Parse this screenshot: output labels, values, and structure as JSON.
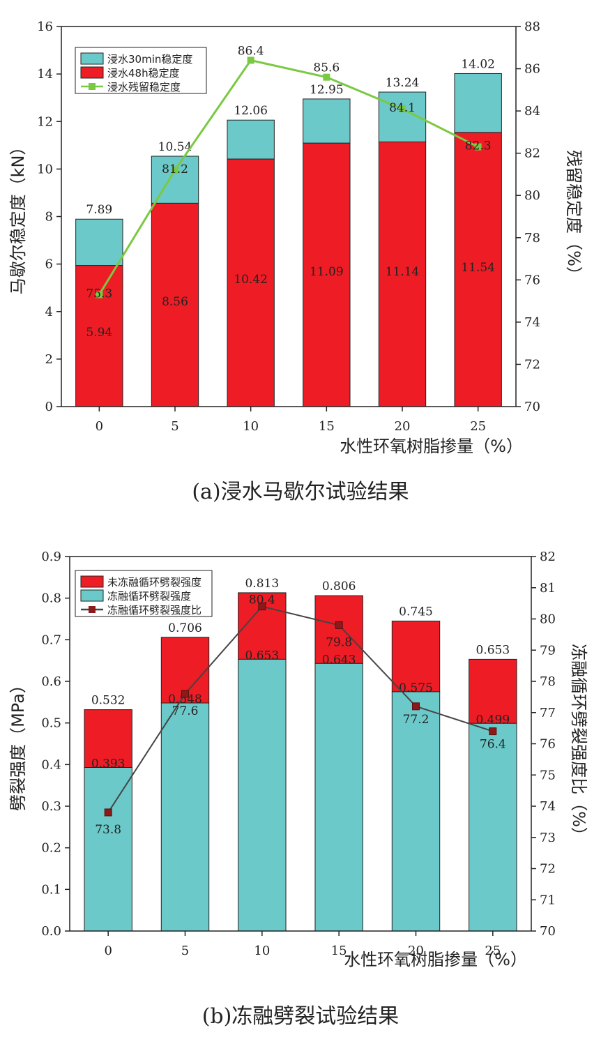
{
  "chart_data": [
    {
      "id": "a",
      "type": "bar",
      "stacked": true,
      "caption": "(a)浸水马歇尔试验结果",
      "categories": [
        "0",
        "5",
        "10",
        "15",
        "20",
        "25"
      ],
      "xlabel": "水性环氧树脂掺量（%）",
      "ylabel": "马歇尔稳定度（kN）",
      "y2label": "残留稳定度（%）",
      "ylim": [
        0,
        16
      ],
      "yticks": [
        0,
        2,
        4,
        6,
        8,
        10,
        12,
        14,
        16
      ],
      "y2lim": [
        70,
        88
      ],
      "y2ticks": [
        70,
        72,
        74,
        76,
        78,
        80,
        82,
        84,
        86,
        88
      ],
      "legend_position": "top-left",
      "series": [
        {
          "name": "浸水30min稳定度",
          "kind": "bar-total",
          "color": "#6cc9c9",
          "values": [
            7.89,
            10.54,
            12.06,
            12.95,
            13.24,
            14.02
          ],
          "labels": [
            "7.89",
            "10.54",
            "12.06",
            "12.95",
            "13.24",
            "14.02"
          ]
        },
        {
          "name": "浸水48h稳定度",
          "kind": "bar-base",
          "color": "#ee1c24",
          "values": [
            5.94,
            8.56,
            10.42,
            11.09,
            11.14,
            11.54
          ],
          "labels": [
            "5.94",
            "8.56",
            "10.42",
            "11.09",
            "11.14",
            "11.54"
          ]
        },
        {
          "name": "浸水残留稳定度",
          "kind": "line",
          "axis": "right",
          "color": "#7ac943",
          "values": [
            75.3,
            81.2,
            86.4,
            85.6,
            84.1,
            82.3
          ],
          "labels": [
            "75.3",
            "81.2",
            "86.4",
            "85.6",
            "84.1",
            "82.3"
          ]
        }
      ]
    },
    {
      "id": "b",
      "type": "bar",
      "stacked": true,
      "caption": "(b)冻融劈裂试验结果",
      "categories": [
        "0",
        "5",
        "10",
        "15",
        "20",
        "25"
      ],
      "xlabel": "水性环氧树脂掺量（%）",
      "ylabel": "劈裂强度（MPa）",
      "y2label": "冻融循环劈裂强度比（%）",
      "ylim": [
        0,
        0.9
      ],
      "yticks": [
        "0.0",
        "0.1",
        "0.2",
        "0.3",
        "0.4",
        "0.5",
        "0.6",
        "0.7",
        "0.8",
        "0.9"
      ],
      "y2lim": [
        70,
        82
      ],
      "y2ticks": [
        70,
        71,
        72,
        73,
        74,
        75,
        76,
        77,
        78,
        79,
        80,
        81,
        82
      ],
      "legend_position": "top-left",
      "series": [
        {
          "name": "未冻融循环劈裂强度",
          "kind": "bar-total",
          "color": "#ee1c24",
          "values": [
            0.532,
            0.706,
            0.813,
            0.806,
            0.745,
            0.653
          ],
          "labels": [
            "0.532",
            "0.706",
            "0.813",
            "0.806",
            "0.745",
            "0.653"
          ]
        },
        {
          "name": "冻融循环劈裂强度",
          "kind": "bar-base",
          "color": "#6cc9c9",
          "values": [
            0.393,
            0.548,
            0.653,
            0.643,
            0.575,
            0.499
          ],
          "labels": [
            "0.393",
            "0.548",
            "0.653",
            "0.643",
            "0.575",
            "0.499"
          ]
        },
        {
          "name": "冻融循环劈裂强度比",
          "kind": "line",
          "axis": "right",
          "color": "#444444",
          "marker_color": "#8b1a1a",
          "values": [
            73.8,
            77.6,
            80.4,
            79.8,
            77.2,
            76.4
          ],
          "labels": [
            "73.8",
            "77.6",
            "80.4",
            "79.8",
            "77.2",
            "76.4"
          ]
        }
      ]
    }
  ]
}
